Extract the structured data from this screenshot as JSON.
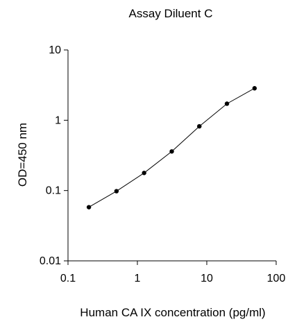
{
  "chart_data": {
    "type": "scatter",
    "title": "Assay Diluent C",
    "xlabel": "Human CA IX concentration (pg/ml)",
    "ylabel": "OD=450 nm",
    "xscale": "log",
    "yscale": "log",
    "xlim": [
      0.1,
      100
    ],
    "ylim": [
      0.01,
      10
    ],
    "x_ticks": [
      "0.1",
      "1",
      "10",
      "100"
    ],
    "y_ticks": [
      "0.01",
      "0.1",
      "1",
      "10"
    ],
    "grid": false,
    "legend": "none",
    "series": [
      {
        "x": [
          0.2,
          0.5,
          1.25,
          3.13,
          7.81,
          19.53,
          48.83
        ],
        "y": [
          0.058,
          0.098,
          0.178,
          0.36,
          0.82,
          1.72,
          2.85
        ]
      }
    ]
  }
}
